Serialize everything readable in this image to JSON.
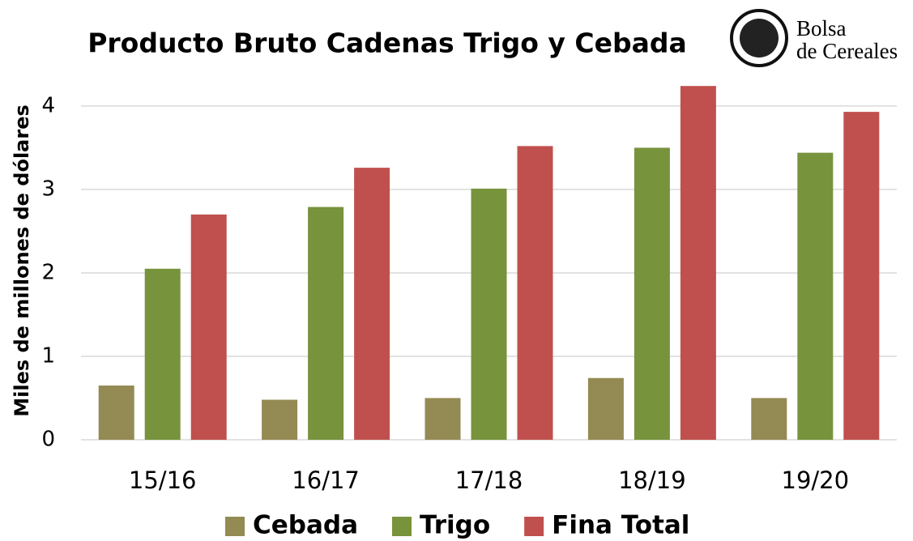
{
  "chart_data": {
    "type": "bar",
    "title": "Producto Bruto Cadenas Trigo y Cebada",
    "logo": [
      "Bolsa",
      "de Cereales"
    ],
    "ylabel": "Miles de millones de dólares",
    "categories": [
      "15/16",
      "16/17",
      "17/18",
      "18/19",
      "19/20"
    ],
    "series": [
      {
        "name": "Cebada",
        "color": "#948a54",
        "values": [
          0.65,
          0.48,
          0.5,
          0.74,
          0.5
        ]
      },
      {
        "name": "Trigo",
        "color": "#77933c",
        "values": [
          2.05,
          2.79,
          3.01,
          3.5,
          3.44
        ]
      },
      {
        "name": "Fina Total",
        "color": "#c0504d",
        "values": [
          2.7,
          3.26,
          3.52,
          4.24,
          3.93
        ]
      }
    ],
    "ylim": [
      0,
      4.3
    ],
    "yticks": [
      0,
      1,
      2,
      3,
      4
    ],
    "grid": true,
    "legend": "bottom"
  }
}
